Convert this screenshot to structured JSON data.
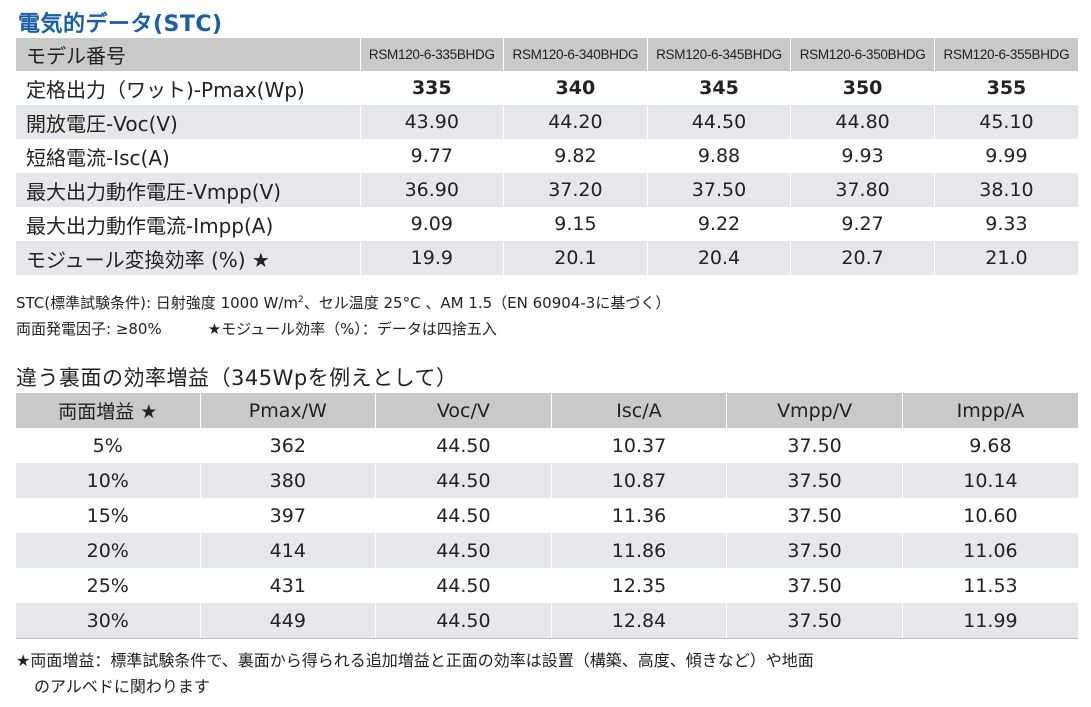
{
  "title": "電気的データ(STC)",
  "spec_table": {
    "header": {
      "label": "モデル番号",
      "models": [
        "RSM120-6-335BHDG",
        "RSM120-6-340BHDG",
        "RSM120-6-345BHDG",
        "RSM120-6-350BHDG",
        "RSM120-6-355BHDG"
      ]
    },
    "rows": [
      {
        "label": "定格出力（ワット)-Pmax(Wp)",
        "values": [
          "335",
          "340",
          "345",
          "350",
          "355"
        ]
      },
      {
        "label": "開放電圧-Voc(V)",
        "values": [
          "43.90",
          "44.20",
          "44.50",
          "44.80",
          "45.10"
        ]
      },
      {
        "label": "短絡電流-Isc(A)",
        "values": [
          "9.77",
          "9.82",
          "9.88",
          "9.93",
          "9.99"
        ]
      },
      {
        "label": "最大出力動作電圧-Vmpp(V)",
        "values": [
          "36.90",
          "37.20",
          "37.50",
          "37.80",
          "38.10"
        ]
      },
      {
        "label": "最大出力動作電流-Impp(A)",
        "values": [
          "9.09",
          "9.15",
          "9.22",
          "9.27",
          "9.33"
        ]
      },
      {
        "label": "モジュール変換効率 (%) ★",
        "values": [
          "19.9",
          "20.1",
          "20.4",
          "20.7",
          "21.0"
        ]
      }
    ]
  },
  "notes": {
    "stc_pre": "STC(標準試験条件): 日射強度 1000 W/m",
    "stc_sup": "2",
    "stc_post": "、セル温度 25°C 、AM 1.5（EN 60904-3に基づく）",
    "bifaciality": "両面発電因子: ≥80%",
    "efficiency_note": "★モジュール効率（%）：データは四捨五入"
  },
  "subtitle": "違う裏面の効率増益（345Wpを例えとして）",
  "gain_table": {
    "headers": [
      "両面増益 ★",
      "Pmax/W",
      "Voc/V",
      "Isc/A",
      "Vmpp/V",
      "Impp/A"
    ],
    "rows": [
      [
        "5%",
        "362",
        "44.50",
        "10.37",
        "37.50",
        "9.68"
      ],
      [
        "10%",
        "380",
        "44.50",
        "10.87",
        "37.50",
        "10.14"
      ],
      [
        "15%",
        "397",
        "44.50",
        "11.36",
        "37.50",
        "10.60"
      ],
      [
        "20%",
        "414",
        "44.50",
        "11.86",
        "37.50",
        "11.06"
      ],
      [
        "25%",
        "431",
        "44.50",
        "12.35",
        "37.50",
        "11.53"
      ],
      [
        "30%",
        "449",
        "44.50",
        "12.84",
        "37.50",
        "11.99"
      ]
    ]
  },
  "footnote": {
    "line1": "★両面増益：標準試験条件で、裏面から得られる追加増益と正面の効率は設置（構築、高度、傾きなど）や地面",
    "line2": "のアルベドに関わります"
  }
}
